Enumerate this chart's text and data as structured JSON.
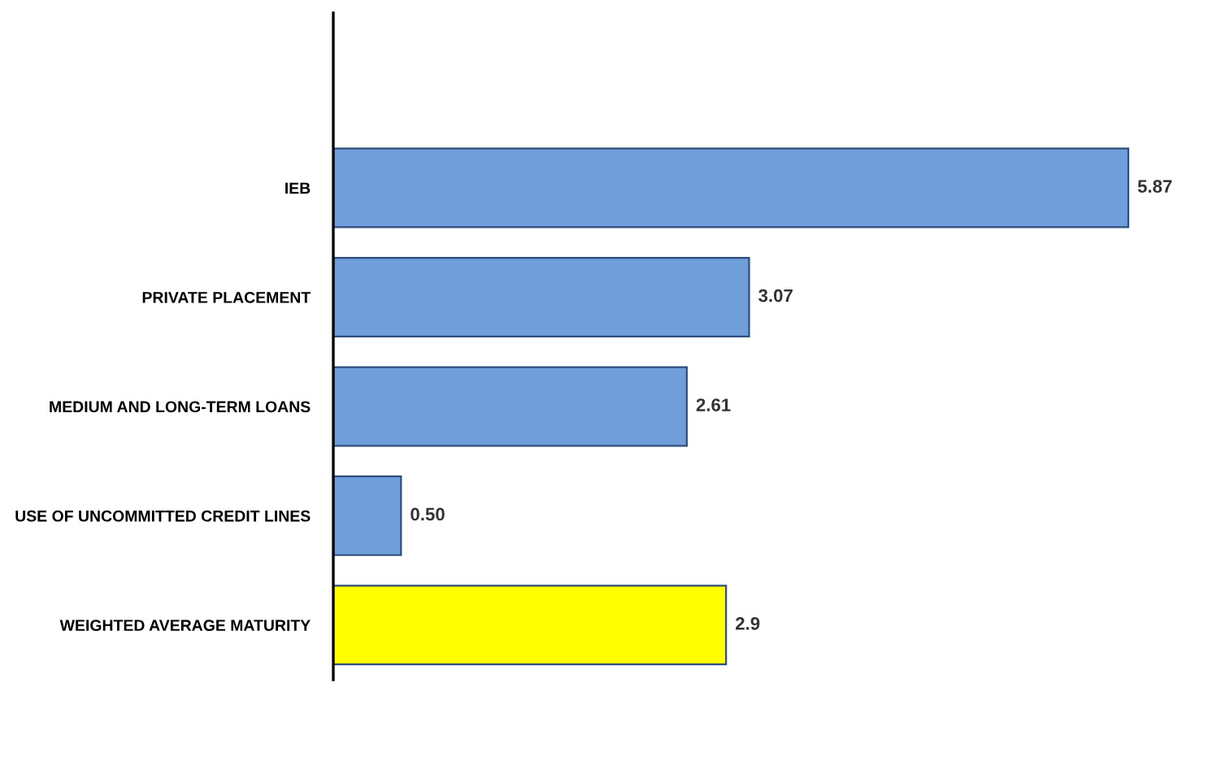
{
  "chart_data": {
    "type": "bar",
    "orientation": "horizontal",
    "tick_labels": "y",
    "grid": false,
    "legend": false,
    "categories": [
      "IEB",
      "PRIVATE PLACEMENT",
      "MEDIUM AND LONG-TERM LOANS",
      "USE OF UNCOMMITTED CREDIT LINES",
      "WEIGHTED AVERAGE MATURITY"
    ],
    "values": [
      5.87,
      3.07,
      2.61,
      0.5,
      2.9
    ],
    "value_labels": [
      "5.87",
      "3.07",
      "2.61",
      "0.50",
      "2.9"
    ],
    "colors": [
      "#6f9edb",
      "#6f9edb",
      "#6f9edb",
      "#6f9edb",
      "#ffff00"
    ]
  }
}
